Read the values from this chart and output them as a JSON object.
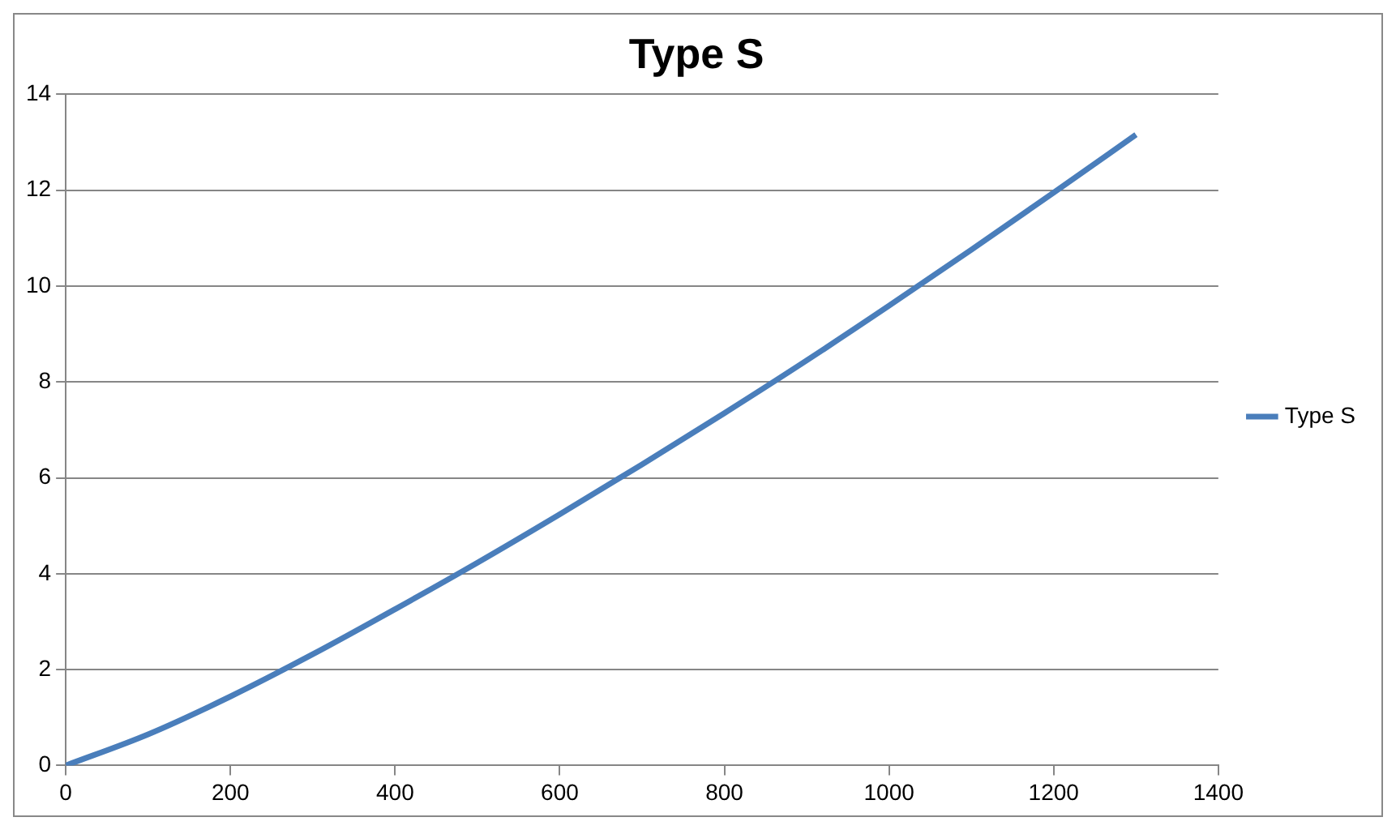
{
  "chart_data": {
    "type": "line",
    "title": "Type S",
    "x": [
      0,
      100,
      200,
      300,
      400,
      500,
      600,
      700,
      800,
      900,
      1000,
      1100,
      1200,
      1300
    ],
    "series": [
      {
        "name": "Type S",
        "color": "#4a7ebb",
        "values": [
          0,
          0.65,
          1.44,
          2.32,
          3.26,
          4.23,
          5.24,
          6.28,
          7.35,
          8.45,
          9.59,
          10.76,
          11.95,
          13.16
        ]
      }
    ],
    "xlim": [
      0,
      1400
    ],
    "xticks": [
      0,
      200,
      400,
      600,
      800,
      1000,
      1200,
      1400
    ],
    "ylim": [
      0,
      14
    ],
    "yticks": [
      0,
      2,
      4,
      6,
      8,
      10,
      12,
      14
    ],
    "grid": "y",
    "legend": "right",
    "marker": "none",
    "line_style": "solid"
  }
}
